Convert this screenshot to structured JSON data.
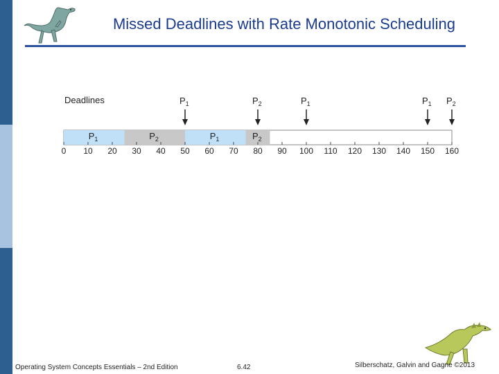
{
  "slide": {
    "title": "Missed Deadlines with Rate Monotonic Scheduling",
    "footer_left": "Operating System Concepts Essentials – 2nd Edition",
    "footer_page": "6.42",
    "footer_right": "Silberschatz, Galvin and Gagne ©2013"
  },
  "colors": {
    "title": "#1a3a8f",
    "rule": "#2c4f9c",
    "sidebar": [
      "#2e5f91",
      "#a7c3df",
      "#2e5f91"
    ],
    "p1_block": "#bfe0f7",
    "p2_block": "#c8c8c8"
  },
  "diagram": {
    "deadlines_label": "Deadlines",
    "axis_ticks": [
      0,
      10,
      20,
      30,
      40,
      50,
      60,
      70,
      80,
      90,
      100,
      110,
      120,
      130,
      140,
      150,
      160
    ],
    "segments": [
      {
        "process": "P1",
        "sub": "1",
        "start": 0,
        "end": 25
      },
      {
        "process": "P2",
        "sub": "2",
        "start": 25,
        "end": 50
      },
      {
        "process": "P1",
        "sub": "1",
        "start": 50,
        "end": 75
      },
      {
        "process": "P2",
        "sub": "2",
        "start": 75,
        "end": 85
      }
    ],
    "deadlines": [
      {
        "process": "P1",
        "sub": "1",
        "time": 50
      },
      {
        "process": "P2",
        "sub": "2",
        "time": 80
      },
      {
        "process": "P1",
        "sub": "1",
        "time": 100
      },
      {
        "process": "P1",
        "sub": "1",
        "time": 150
      },
      {
        "process": "P2",
        "sub": "2",
        "time": 160
      }
    ]
  },
  "icons": {
    "top_left": "dinosaur-icon",
    "bottom_right": "dinosaur-icon"
  }
}
